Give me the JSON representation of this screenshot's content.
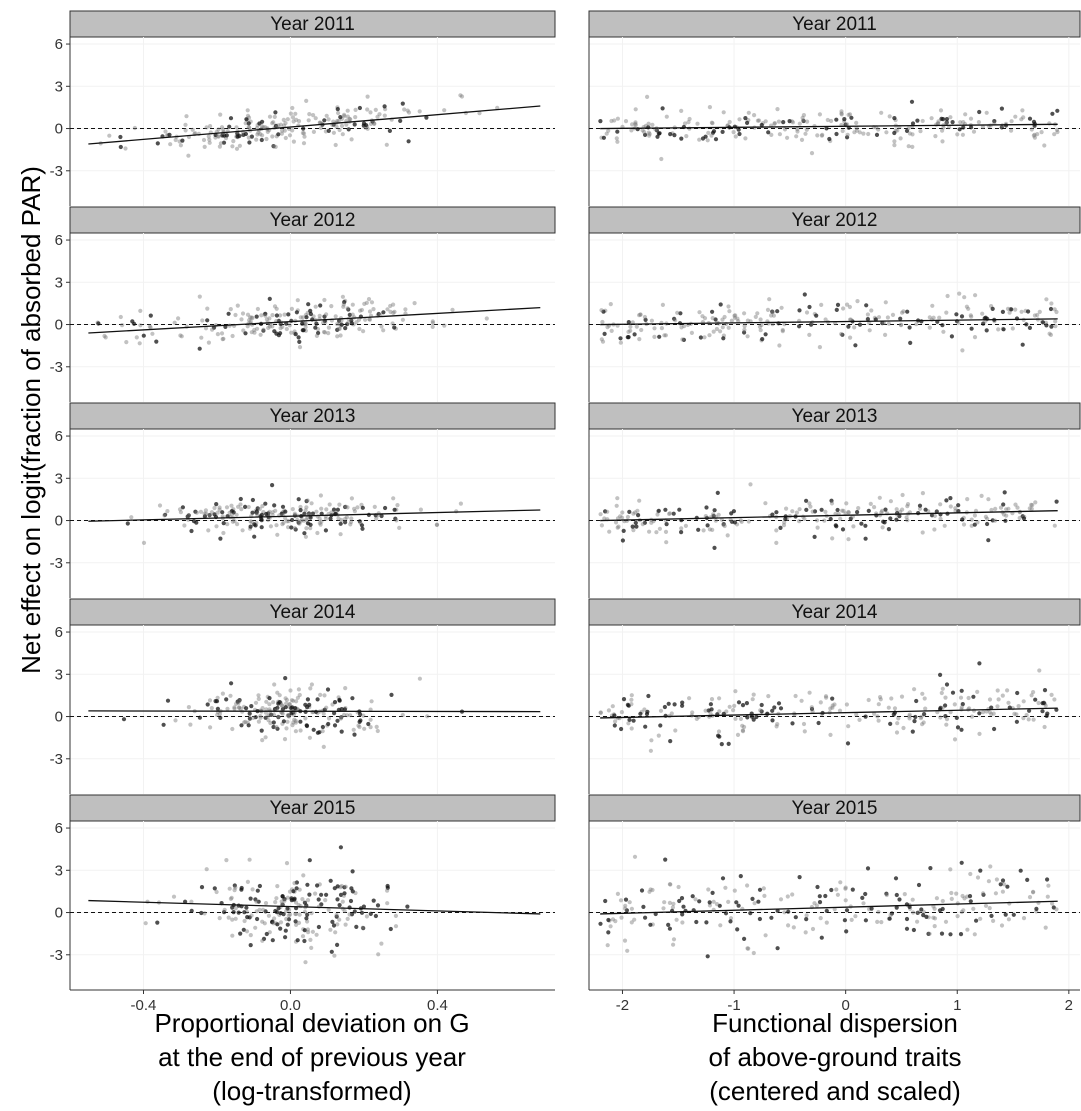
{
  "figure": {
    "ylabel": "Net effect on logit(fraction of absorbed PAR)",
    "left_xlabel_lines": [
      "Proportional deviation on G",
      "at the end of previous year",
      "(log-transformed)"
    ],
    "right_xlabel_lines": [
      "Functional dispersion",
      "of above-ground traits",
      "(centered and scaled)"
    ]
  },
  "chart_data": [
    {
      "type": "scatter",
      "panel": "left",
      "title": "Year 2011",
      "xlim": [
        -0.6,
        0.72
      ],
      "ylim": [
        -5.5,
        6.5
      ],
      "yticks": [
        -3,
        0,
        3,
        6
      ],
      "xticks": [
        -0.4,
        0.0,
        0.4
      ],
      "ref_y": 0,
      "fit": {
        "x": [
          -0.55,
          0.68
        ],
        "y": [
          -1.1,
          1.6
        ]
      },
      "seed": 11,
      "n": 230,
      "xcenter": 0.0,
      "xspread": 0.2,
      "slope": 2.2,
      "ynoise": 0.75,
      "dark_fraction": 0.25
    },
    {
      "type": "scatter",
      "panel": "left",
      "title": "Year 2012",
      "xlim": [
        -0.6,
        0.72
      ],
      "ylim": [
        -5.5,
        6.5
      ],
      "yticks": [
        -3,
        0,
        3,
        6
      ],
      "xticks": [
        -0.4,
        0.0,
        0.4
      ],
      "ref_y": 0,
      "fit": {
        "x": [
          -0.55,
          0.68
        ],
        "y": [
          -0.6,
          1.2
        ]
      },
      "seed": 12,
      "n": 230,
      "xcenter": 0.0,
      "xspread": 0.2,
      "slope": 1.45,
      "ynoise": 0.85,
      "dark_fraction": 0.25
    },
    {
      "type": "scatter",
      "panel": "left",
      "title": "Year 2013",
      "xlim": [
        -0.6,
        0.72
      ],
      "ylim": [
        -5.5,
        6.5
      ],
      "yticks": [
        -3,
        0,
        3,
        6
      ],
      "xticks": [
        -0.4,
        0.0,
        0.4
      ],
      "ref_y": 0,
      "fit": {
        "x": [
          -0.55,
          0.68
        ],
        "y": [
          -0.05,
          0.75
        ]
      },
      "seed": 13,
      "n": 230,
      "xcenter": 0.0,
      "xspread": 0.17,
      "slope": 0.65,
      "ynoise": 0.8,
      "dark_fraction": 0.35
    },
    {
      "type": "scatter",
      "panel": "left",
      "title": "Year 2014",
      "xlim": [
        -0.6,
        0.72
      ],
      "ylim": [
        -5.5,
        6.5
      ],
      "yticks": [
        -3,
        0,
        3,
        6
      ],
      "xticks": [
        -0.4,
        0.0,
        0.4
      ],
      "ref_y": 0,
      "fit": {
        "x": [
          -0.55,
          0.68
        ],
        "y": [
          0.4,
          0.35
        ]
      },
      "seed": 14,
      "n": 230,
      "xcenter": 0.0,
      "xspread": 0.14,
      "slope": 0.0,
      "ynoise": 1.0,
      "dark_fraction": 0.35
    },
    {
      "type": "scatter",
      "panel": "left",
      "title": "Year 2015",
      "xlim": [
        -0.6,
        0.72
      ],
      "ylim": [
        -5.5,
        6.5
      ],
      "yticks": [
        -3,
        0,
        3,
        6
      ],
      "xticks": [
        -0.4,
        0.0,
        0.4
      ],
      "ref_y": 0,
      "fit": {
        "x": [
          -0.55,
          0.68
        ],
        "y": [
          0.85,
          -0.1
        ]
      },
      "seed": 15,
      "n": 230,
      "xcenter": 0.0,
      "xspread": 0.15,
      "slope": -0.75,
      "ynoise": 1.5,
      "dark_fraction": 0.45
    },
    {
      "type": "scatter",
      "panel": "right",
      "title": "Year 2011",
      "xlim": [
        -2.3,
        2.1
      ],
      "ylim": [
        -5.5,
        6.5
      ],
      "yticks": [
        -3,
        0,
        3,
        6
      ],
      "xticks": [
        -2,
        -1,
        0,
        1,
        2
      ],
      "ref_y": 0,
      "fit": {
        "x": [
          -2.2,
          1.9
        ],
        "y": [
          0.0,
          0.3
        ]
      },
      "seed": 21,
      "n": 250,
      "xcenter": 0.0,
      "xspread": 1.0,
      "slope": 0.07,
      "ynoise": 0.75,
      "dark_fraction": 0.3
    },
    {
      "type": "scatter",
      "panel": "right",
      "title": "Year 2012",
      "xlim": [
        -2.3,
        2.1
      ],
      "ylim": [
        -5.5,
        6.5
      ],
      "yticks": [
        -3,
        0,
        3,
        6
      ],
      "xticks": [
        -2,
        -1,
        0,
        1,
        2
      ],
      "ref_y": 0,
      "fit": {
        "x": [
          -2.2,
          1.9
        ],
        "y": [
          0.0,
          0.4
        ]
      },
      "seed": 22,
      "n": 250,
      "xcenter": 0.0,
      "xspread": 1.0,
      "slope": 0.1,
      "ynoise": 0.85,
      "dark_fraction": 0.3
    },
    {
      "type": "scatter",
      "panel": "right",
      "title": "Year 2013",
      "xlim": [
        -2.3,
        2.1
      ],
      "ylim": [
        -5.5,
        6.5
      ],
      "yticks": [
        -3,
        0,
        3,
        6
      ],
      "xticks": [
        -2,
        -1,
        0,
        1,
        2
      ],
      "ref_y": 0,
      "fit": {
        "x": [
          -2.2,
          1.9
        ],
        "y": [
          0.0,
          0.7
        ]
      },
      "seed": 23,
      "n": 250,
      "xcenter": 0.0,
      "xspread": 1.0,
      "slope": 0.17,
      "ynoise": 0.8,
      "dark_fraction": 0.35
    },
    {
      "type": "scatter",
      "panel": "right",
      "title": "Year 2014",
      "xlim": [
        -2.3,
        2.1
      ],
      "ylim": [
        -5.5,
        6.5
      ],
      "yticks": [
        -3,
        0,
        3,
        6
      ],
      "xticks": [
        -2,
        -1,
        0,
        1,
        2
      ],
      "ref_y": 0,
      "fit": {
        "x": [
          -2.2,
          1.9
        ],
        "y": [
          -0.1,
          0.6
        ]
      },
      "seed": 24,
      "n": 250,
      "xcenter": 0.0,
      "xspread": 1.0,
      "slope": 0.17,
      "ynoise": 1.0,
      "dark_fraction": 0.35
    },
    {
      "type": "scatter",
      "panel": "right",
      "title": "Year 2015",
      "xlim": [
        -2.3,
        2.1
      ],
      "ylim": [
        -5.5,
        6.5
      ],
      "yticks": [
        -3,
        0,
        3,
        6
      ],
      "xticks": [
        -2,
        -1,
        0,
        1,
        2
      ],
      "ref_y": 0,
      "fit": {
        "x": [
          -2.2,
          1.9
        ],
        "y": [
          -0.1,
          0.8
        ]
      },
      "seed": 25,
      "n": 250,
      "xcenter": 0.0,
      "xspread": 1.0,
      "slope": 0.22,
      "ynoise": 1.5,
      "dark_fraction": 0.45
    }
  ]
}
